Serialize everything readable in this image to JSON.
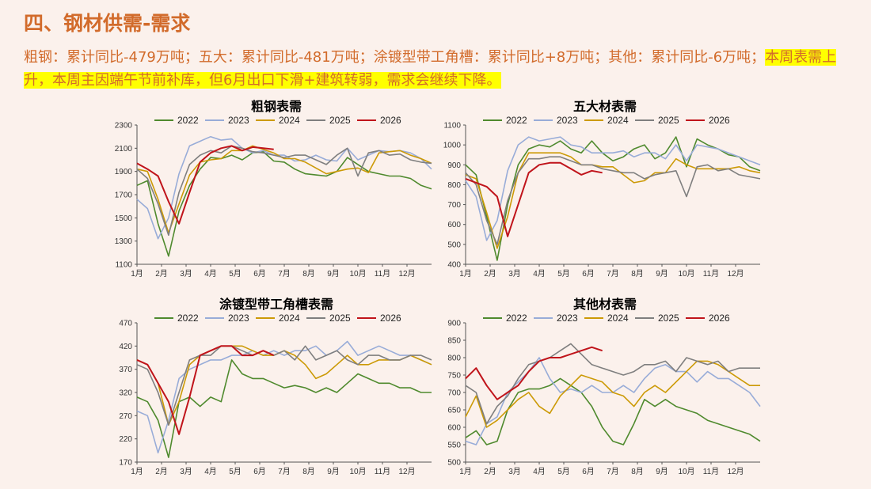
{
  "header": {
    "title": "四、钢材供需-需求",
    "desc_plain": "粗钢：累计同比-479万吨；五大：累计同比-481万吨；涂镀型带工角槽：累计同比+8万吨；其他：累计同比-6万吨；",
    "desc_highlight": "本周表需上升，本周主因端午节前补库，但6月出口下滑+建筑转弱，需求会继续下降。"
  },
  "colors": {
    "2022": "#4f8a2e",
    "2023": "#98acd8",
    "2024": "#cc9a06",
    "2025": "#7f7f7f",
    "2026": "#c0141b"
  },
  "chart_data": [
    {
      "type": "line",
      "title": "粗钢表需",
      "ylim": [
        1100,
        2300
      ],
      "yticks": [
        1100,
        1300,
        1500,
        1700,
        1900,
        2100,
        2300
      ],
      "x_labels": [
        "1月",
        "2月",
        "3月",
        "4月",
        "5月",
        "6月",
        "7月",
        "8月",
        "9月",
        "10月",
        "11月",
        "12月"
      ],
      "series": [
        {
          "name": "2022",
          "values": [
            1780,
            1820,
            1450,
            1170,
            1560,
            1780,
            1920,
            2020,
            2010,
            2040,
            2000,
            2060,
            2070,
            1990,
            1980,
            1920,
            1880,
            1870,
            1860,
            1900,
            2020,
            1960,
            1900,
            1880,
            1860,
            1860,
            1840,
            1780,
            1750
          ]
        },
        {
          "name": "2023",
          "values": [
            1660,
            1580,
            1320,
            1500,
            1880,
            2120,
            2160,
            2200,
            2170,
            2180,
            2100,
            2060,
            2080,
            2040,
            2040,
            1990,
            2000,
            2040,
            2000,
            1990,
            2100,
            2000,
            2040,
            2080,
            2070,
            2080,
            2060,
            2010,
            1920
          ]
        },
        {
          "name": "2024",
          "values": [
            1920,
            1900,
            1660,
            1370,
            1620,
            1870,
            1980,
            2000,
            2010,
            2080,
            2080,
            2120,
            2090,
            2060,
            2010,
            2010,
            1980,
            1930,
            1880,
            1900,
            1920,
            1930,
            1890,
            2060,
            2070,
            2080,
            2040,
            2010,
            1970
          ]
        },
        {
          "name": "2025",
          "values": [
            1920,
            1840,
            1620,
            1350,
            1720,
            1960,
            2040,
            2080,
            2060,
            2120,
            2100,
            2070,
            2060,
            2040,
            2020,
            2040,
            2040,
            2000,
            1960,
            2040,
            2100,
            1860,
            2060,
            2080,
            2040,
            2050,
            2000,
            1980,
            1970
          ]
        },
        {
          "name": "2026",
          "values": [
            1970,
            1920,
            1860,
            1640,
            1450,
            1720,
            1980,
            2060,
            2100,
            2120,
            2080,
            2110,
            2100,
            2090
          ],
          "length": 14
        }
      ]
    },
    {
      "type": "line",
      "title": "五大材表需",
      "ylim": [
        400,
        1100
      ],
      "yticks": [
        400,
        500,
        600,
        700,
        800,
        900,
        1000,
        1100
      ],
      "x_labels": [
        "1月",
        "2月",
        "3月",
        "4月",
        "5月",
        "6月",
        "7月",
        "8月",
        "9月",
        "10月",
        "11月",
        "12月"
      ],
      "series": [
        {
          "name": "2022",
          "values": [
            900,
            850,
            640,
            420,
            700,
            900,
            980,
            1000,
            990,
            1020,
            980,
            960,
            1020,
            960,
            920,
            940,
            980,
            1000,
            930,
            960,
            1040,
            890,
            1030,
            1000,
            980,
            950,
            940,
            890,
            870
          ]
        },
        {
          "name": "2023",
          "values": [
            820,
            740,
            520,
            620,
            870,
            1000,
            1040,
            1020,
            1030,
            1040,
            1000,
            990,
            960,
            960,
            960,
            970,
            940,
            960,
            960,
            930,
            1000,
            920,
            1000,
            990,
            980,
            960,
            940,
            920,
            900
          ]
        },
        {
          "name": "2024",
          "values": [
            850,
            830,
            660,
            480,
            640,
            860,
            960,
            960,
            960,
            960,
            940,
            900,
            900,
            890,
            890,
            850,
            810,
            820,
            860,
            860,
            930,
            900,
            880,
            880,
            880,
            880,
            890,
            870,
            860
          ]
        },
        {
          "name": "2025",
          "values": [
            860,
            800,
            620,
            500,
            720,
            860,
            930,
            930,
            940,
            940,
            920,
            900,
            900,
            880,
            870,
            860,
            860,
            830,
            850,
            860,
            870,
            740,
            890,
            900,
            870,
            880,
            850,
            840,
            830
          ]
        },
        {
          "name": "2026",
          "values": [
            830,
            810,
            790,
            740,
            540,
            700,
            860,
            900,
            910,
            910,
            880,
            850,
            870,
            860
          ],
          "length": 14
        }
      ]
    },
    {
      "type": "line",
      "title": "涂镀型带工角槽表需",
      "ylim": [
        170,
        470
      ],
      "yticks": [
        170,
        220,
        270,
        320,
        370,
        420,
        470
      ],
      "x_labels": [
        "1月",
        "2月",
        "3月",
        "4月",
        "5月",
        "6月",
        "7月",
        "8月",
        "9月",
        "10月",
        "11月",
        "12月"
      ],
      "series": [
        {
          "name": "2022",
          "values": [
            310,
            300,
            260,
            180,
            300,
            310,
            290,
            310,
            300,
            390,
            360,
            350,
            350,
            340,
            330,
            335,
            330,
            320,
            330,
            320,
            340,
            360,
            350,
            340,
            340,
            330,
            330,
            320,
            320
          ]
        },
        {
          "name": "2023",
          "values": [
            280,
            270,
            190,
            260,
            350,
            370,
            380,
            390,
            390,
            400,
            400,
            410,
            400,
            410,
            400,
            410,
            410,
            420,
            400,
            410,
            430,
            400,
            410,
            420,
            410,
            400,
            400,
            390,
            380
          ]
        },
        {
          "name": "2024",
          "values": [
            390,
            380,
            340,
            250,
            300,
            380,
            400,
            410,
            420,
            420,
            420,
            410,
            400,
            400,
            410,
            400,
            380,
            350,
            360,
            380,
            400,
            380,
            380,
            390,
            390,
            390,
            400,
            390,
            380
          ]
        },
        {
          "name": "2025",
          "values": [
            380,
            370,
            320,
            250,
            320,
            390,
            400,
            400,
            420,
            420,
            410,
            400,
            410,
            400,
            410,
            390,
            420,
            390,
            400,
            410,
            390,
            380,
            400,
            400,
            390,
            390,
            400,
            400,
            390
          ]
        },
        {
          "name": "2026",
          "values": [
            390,
            380,
            340,
            300,
            230,
            310,
            400,
            410,
            420,
            420,
            400,
            400,
            410,
            400
          ],
          "length": 14
        }
      ]
    },
    {
      "type": "line",
      "title": "其他材表需",
      "ylim": [
        500,
        900
      ],
      "yticks": [
        500,
        550,
        600,
        650,
        700,
        750,
        800,
        850,
        900
      ],
      "x_labels": [
        "1月",
        "2月",
        "3月",
        "4月",
        "5月",
        "6月",
        "7月",
        "8月",
        "9月",
        "10月",
        "11月",
        "12月"
      ],
      "series": [
        {
          "name": "2022",
          "values": [
            570,
            590,
            550,
            560,
            650,
            700,
            710,
            710,
            720,
            740,
            720,
            700,
            660,
            600,
            560,
            550,
            610,
            680,
            660,
            680,
            660,
            650,
            640,
            620,
            610,
            600,
            590,
            580,
            560
          ]
        },
        {
          "name": "2023",
          "values": [
            560,
            550,
            610,
            630,
            700,
            730,
            760,
            800,
            740,
            700,
            710,
            700,
            720,
            700,
            700,
            720,
            700,
            740,
            770,
            780,
            760,
            760,
            730,
            760,
            740,
            740,
            720,
            700,
            660
          ]
        },
        {
          "name": "2024",
          "values": [
            630,
            690,
            600,
            620,
            650,
            680,
            700,
            660,
            640,
            690,
            720,
            750,
            740,
            730,
            700,
            690,
            660,
            700,
            720,
            700,
            730,
            760,
            790,
            790,
            780,
            760,
            740,
            720,
            720
          ]
        },
        {
          "name": "2025",
          "values": [
            720,
            700,
            610,
            660,
            690,
            740,
            780,
            790,
            800,
            820,
            840,
            810,
            780,
            770,
            760,
            750,
            760,
            780,
            780,
            790,
            760,
            800,
            790,
            780,
            790,
            760,
            770,
            770,
            770
          ]
        },
        {
          "name": "2026",
          "values": [
            740,
            770,
            720,
            680,
            700,
            720,
            760,
            790,
            800,
            800,
            810,
            820,
            830,
            820
          ],
          "length": 14
        }
      ]
    }
  ],
  "legend_years": [
    "2022",
    "2023",
    "2024",
    "2025",
    "2026"
  ]
}
